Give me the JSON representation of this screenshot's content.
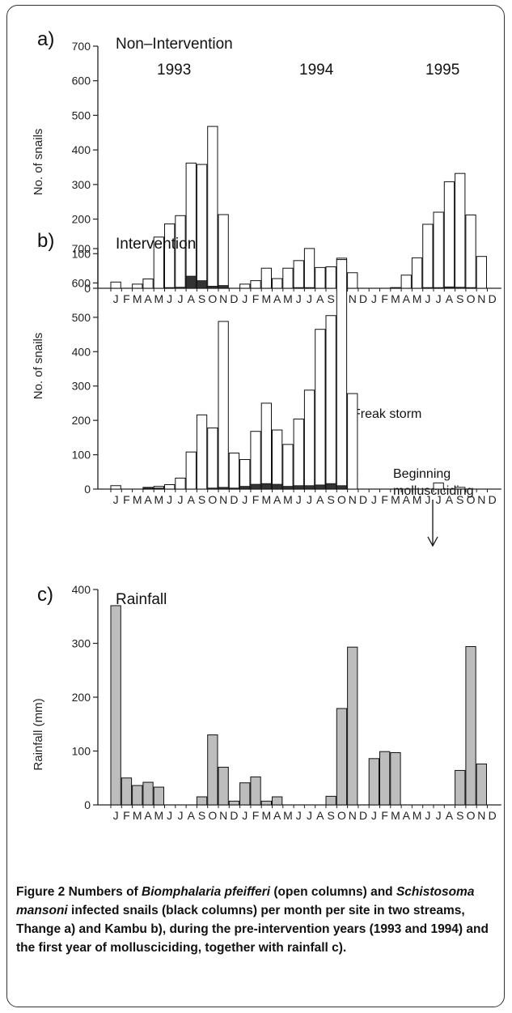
{
  "caption": {
    "label": "Figure 2",
    "part1": " Numbers of ",
    "species1": "Biomphalaria pfeifferi",
    "part2": " (open columns) and ",
    "species2": "Schistosoma mansoni",
    "part3": " infected snails (black columns) per month per site in two streams, Thange a) and Kambu b), during the pre-intervention years (1993 and 1994) and the first year of mollusciciding, together with rainfall c)."
  },
  "colors": {
    "open": "#ffffff",
    "infected": "#333333",
    "rain": "#bdbdbd",
    "axis": "#222222"
  },
  "month_ticks": [
    "J",
    "F",
    "M",
    "A",
    "M",
    "J",
    "J",
    "A",
    "S",
    "O",
    "N",
    "D",
    "J",
    "F",
    "M",
    "A",
    "M",
    "J",
    "J",
    "A",
    "S",
    "O",
    "N",
    "D",
    "J",
    "F",
    "M",
    "A",
    "M",
    "J",
    "J",
    "A",
    "S",
    "O",
    "N",
    "D"
  ],
  "chart_data": [
    {
      "type": "bar",
      "panel": "a)",
      "title": "Non–Intervention",
      "years": [
        "1993",
        "1994",
        "1995"
      ],
      "ylabel": "No. of snails",
      "ylim": [
        0,
        700
      ],
      "yticks": [
        0,
        100,
        200,
        300,
        400,
        500,
        600,
        700
      ],
      "series": [
        {
          "values": [
            18,
            0,
            12,
            27,
            148,
            186,
            210,
            362,
            358,
            468,
            213,
            0,
            12,
            22,
            58,
            28,
            58,
            80,
            115,
            60,
            62,
            87,
            45,
            0,
            0,
            0,
            2,
            38,
            88,
            185,
            220,
            308,
            332,
            212,
            92,
            0
          ]
        },
        {
          "values": [
            0,
            0,
            0,
            0,
            0,
            2,
            3,
            35,
            22,
            6,
            8,
            0,
            0,
            0,
            0,
            0,
            0,
            2,
            2,
            0,
            0,
            0,
            0,
            0,
            0,
            0,
            0,
            0,
            0,
            2,
            2,
            4,
            3,
            2,
            0,
            0
          ]
        }
      ]
    },
    {
      "type": "bar",
      "panel": "b)",
      "title": "Intervention",
      "ylabel": "No. of snails",
      "ylim": [
        0,
        700
      ],
      "yticks": [
        0,
        100,
        200,
        300,
        400,
        500,
        600,
        700
      ],
      "annotations": [
        "Freak storm",
        "Beginning mollusciciding"
      ],
      "series": [
        {
          "values": [
            10,
            0,
            0,
            5,
            8,
            13,
            32,
            108,
            216,
            178,
            488,
            105,
            86,
            168,
            250,
            172,
            130,
            204,
            288,
            465,
            505,
            668,
            278,
            0,
            0,
            0,
            0,
            0,
            0,
            0,
            18,
            0,
            5,
            0,
            0,
            0
          ]
        },
        {
          "values": [
            0,
            0,
            0,
            3,
            3,
            0,
            0,
            0,
            0,
            3,
            5,
            3,
            8,
            14,
            16,
            14,
            8,
            10,
            10,
            12,
            16,
            10,
            0,
            0,
            0,
            0,
            0,
            0,
            0,
            0,
            0,
            0,
            0,
            0,
            0,
            0
          ]
        }
      ]
    },
    {
      "type": "bar",
      "panel": "c)",
      "title": "Rainfall",
      "ylabel": "Rainfall (mm)",
      "ylim": [
        0,
        400
      ],
      "yticks": [
        0,
        100,
        200,
        300,
        400
      ],
      "series": [
        {
          "values": [
            370,
            50,
            36,
            42,
            33,
            0,
            0,
            0,
            15,
            130,
            70,
            7,
            41,
            52,
            7,
            15,
            0,
            0,
            0,
            0,
            16,
            179,
            293,
            0,
            86,
            99,
            97,
            0,
            0,
            0,
            0,
            0,
            64,
            294,
            76,
            0
          ]
        }
      ]
    }
  ]
}
